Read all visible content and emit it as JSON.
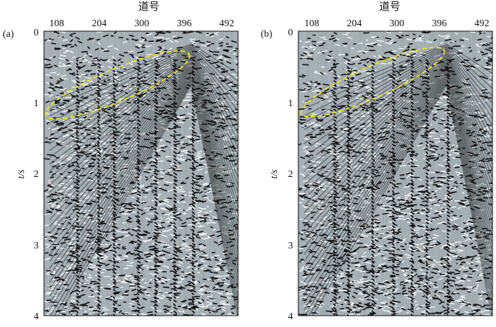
{
  "panels": [
    {
      "label": "(a)",
      "axis_title": "道号",
      "y_title": "t/s",
      "x_ticks": [
        "108",
        "204",
        "300",
        "396",
        "492"
      ],
      "y_ticks": [
        "0",
        "1",
        "2",
        "3",
        "4"
      ]
    },
    {
      "label": "(b)",
      "axis_title": "道号",
      "y_title": "t/s",
      "x_ticks": [
        "108",
        "204",
        "300",
        "396",
        "492"
      ],
      "y_ticks": [
        "0",
        "1",
        "2",
        "3",
        "4"
      ]
    }
  ],
  "colors": {
    "background": "#a7b1b6",
    "trace_dark": "#111111",
    "trace_light": "#f4f6f7",
    "ellipse": "#e9e21f"
  }
}
